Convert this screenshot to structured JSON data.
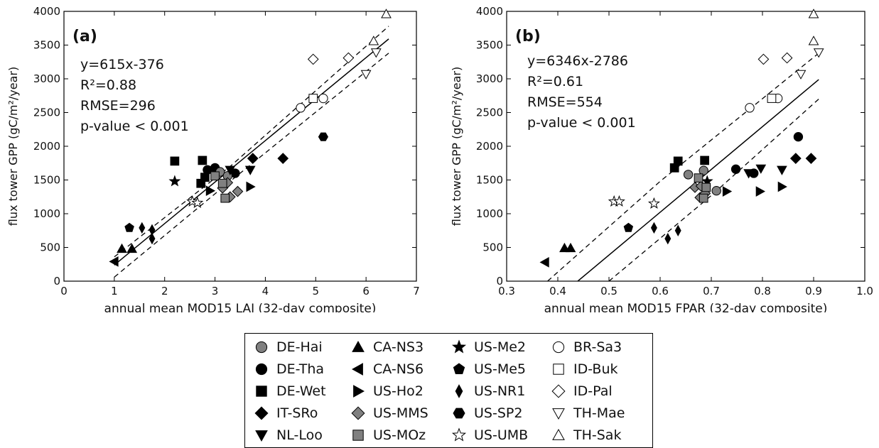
{
  "chart_data": [
    {
      "type": "scatter",
      "panel_label": "(a)",
      "xlabel": "annual mean MOD15 LAI (32-day composite)",
      "ylabel": "flux tower GPP (gC/m²/year)",
      "xlim": [
        0,
        7
      ],
      "ylim": [
        0,
        4000
      ],
      "xticks": [
        0,
        1,
        2,
        3,
        4,
        5,
        6,
        7
      ],
      "yticks": [
        0,
        500,
        1000,
        1500,
        2000,
        2500,
        3000,
        3500,
        4000
      ],
      "annotations": [
        "y=615x-376",
        "R²=0.88",
        "RMSE=296",
        "p-value < 0.001"
      ],
      "fit": {
        "slope": 615,
        "intercept": -376,
        "x_range": [
          1.0,
          6.45
        ]
      },
      "conf_band_upper": [
        [
          1.0,
          360
        ],
        [
          3.3,
          1700
        ],
        [
          6.45,
          3780
        ]
      ],
      "conf_band_lower": [
        [
          1.0,
          60
        ],
        [
          3.3,
          1480
        ],
        [
          6.45,
          3380
        ]
      ],
      "points": [
        {
          "site": "CA-NS3",
          "x": 1.15,
          "y": 480
        },
        {
          "site": "CA-NS3",
          "x": 1.35,
          "y": 480
        },
        {
          "site": "CA-NS6",
          "x": 1.0,
          "y": 290
        },
        {
          "site": "US-Me5",
          "x": 1.3,
          "y": 790
        },
        {
          "site": "US-NR1",
          "x": 1.55,
          "y": 790
        },
        {
          "site": "US-NR1",
          "x": 1.75,
          "y": 630
        },
        {
          "site": "US-NR1",
          "x": 1.75,
          "y": 760
        },
        {
          "site": "DE-Wet",
          "x": 2.2,
          "y": 1780
        },
        {
          "site": "US-Me2",
          "x": 2.2,
          "y": 1480
        },
        {
          "site": "DE-Wet",
          "x": 2.75,
          "y": 1790
        },
        {
          "site": "DE-Wet",
          "x": 2.72,
          "y": 1450
        },
        {
          "site": "DE-Wet",
          "x": 2.8,
          "y": 1540
        },
        {
          "site": "DE-Tha",
          "x": 2.85,
          "y": 1650
        },
        {
          "site": "DE-Tha",
          "x": 3.0,
          "y": 1680
        },
        {
          "site": "DE-Tha",
          "x": 3.4,
          "y": 1600
        },
        {
          "site": "DE-Hai",
          "x": 3.1,
          "y": 1620
        },
        {
          "site": "DE-Hai",
          "x": 3.25,
          "y": 1560
        },
        {
          "site": "US-Ho2",
          "x": 2.9,
          "y": 1340
        },
        {
          "site": "US-Ho2",
          "x": 3.7,
          "y": 1400
        },
        {
          "site": "NL-Loo",
          "x": 3.3,
          "y": 1650
        },
        {
          "site": "NL-Loo",
          "x": 3.7,
          "y": 1650
        },
        {
          "site": "IT-SRo",
          "x": 3.75,
          "y": 1820
        },
        {
          "site": "IT-SRo",
          "x": 4.35,
          "y": 1820
        },
        {
          "site": "US-MMS",
          "x": 3.15,
          "y": 1380
        },
        {
          "site": "US-MMS",
          "x": 3.25,
          "y": 1460
        },
        {
          "site": "US-MMS",
          "x": 3.3,
          "y": 1250
        },
        {
          "site": "US-MMS",
          "x": 3.45,
          "y": 1330
        },
        {
          "site": "US-MOz",
          "x": 3.0,
          "y": 1560
        },
        {
          "site": "US-MOz",
          "x": 3.15,
          "y": 1450
        },
        {
          "site": "US-MOz",
          "x": 3.2,
          "y": 1230
        },
        {
          "site": "US-UMB",
          "x": 2.55,
          "y": 1180
        },
        {
          "site": "US-UMB",
          "x": 2.65,
          "y": 1160
        },
        {
          "site": "US-SP2",
          "x": 5.15,
          "y": 2140
        },
        {
          "site": "BR-Sa3",
          "x": 4.7,
          "y": 2570
        },
        {
          "site": "BR-Sa3",
          "x": 5.15,
          "y": 2710
        },
        {
          "site": "ID-Buk",
          "x": 4.95,
          "y": 2710
        },
        {
          "site": "ID-Pal",
          "x": 4.95,
          "y": 3290
        },
        {
          "site": "ID-Pal",
          "x": 5.65,
          "y": 3310
        },
        {
          "site": "TH-Mae",
          "x": 6.0,
          "y": 3070
        },
        {
          "site": "TH-Mae",
          "x": 6.2,
          "y": 3390
        },
        {
          "site": "TH-Sak",
          "x": 6.15,
          "y": 3560
        },
        {
          "site": "TH-Sak",
          "x": 6.4,
          "y": 3960
        }
      ]
    },
    {
      "type": "scatter",
      "panel_label": "(b)",
      "xlabel": "annual mean MOD15 FPAR (32-day composite)",
      "ylabel": "flux tower GPP (gC/m²/year)",
      "xlim": [
        0.3,
        1.0
      ],
      "ylim": [
        0,
        4000
      ],
      "xticks": [
        0.3,
        0.4,
        0.5,
        0.6,
        0.7,
        0.8,
        0.9,
        1.0
      ],
      "yticks": [
        0,
        500,
        1000,
        1500,
        2000,
        2500,
        3000,
        3500,
        4000
      ],
      "annotations": [
        "y=6346x-2786",
        "R²=0.61",
        "RMSE=554",
        "p-value < 0.001"
      ],
      "fit": {
        "slope": 6346,
        "intercept": -2786,
        "x_range": [
          0.439,
          0.91
        ]
      },
      "conf_band_upper": [
        [
          0.38,
          0
        ],
        [
          0.6,
          1480
        ],
        [
          0.91,
          3380
        ]
      ],
      "conf_band_lower": [
        [
          0.5,
          0
        ],
        [
          0.7,
          1270
        ],
        [
          0.91,
          2700
        ]
      ],
      "points": [
        {
          "site": "CA-NS6",
          "x": 0.375,
          "y": 280
        },
        {
          "site": "CA-NS3",
          "x": 0.413,
          "y": 490
        },
        {
          "site": "CA-NS3",
          "x": 0.425,
          "y": 490
        },
        {
          "site": "US-UMB",
          "x": 0.51,
          "y": 1180
        },
        {
          "site": "US-UMB",
          "x": 0.52,
          "y": 1180
        },
        {
          "site": "US-UMB",
          "x": 0.588,
          "y": 1150
        },
        {
          "site": "US-Me5",
          "x": 0.538,
          "y": 790
        },
        {
          "site": "US-NR1",
          "x": 0.588,
          "y": 790
        },
        {
          "site": "US-NR1",
          "x": 0.615,
          "y": 630
        },
        {
          "site": "US-NR1",
          "x": 0.635,
          "y": 750
        },
        {
          "site": "DE-Wet",
          "x": 0.628,
          "y": 1680
        },
        {
          "site": "DE-Wet",
          "x": 0.635,
          "y": 1780
        },
        {
          "site": "DE-Wet",
          "x": 0.687,
          "y": 1790
        },
        {
          "site": "US-Me2",
          "x": 0.692,
          "y": 1480
        },
        {
          "site": "DE-Hai",
          "x": 0.655,
          "y": 1580
        },
        {
          "site": "DE-Hai",
          "x": 0.685,
          "y": 1640
        },
        {
          "site": "DE-Hai",
          "x": 0.71,
          "y": 1340
        },
        {
          "site": "DE-Tha",
          "x": 0.748,
          "y": 1660
        },
        {
          "site": "DE-Tha",
          "x": 0.783,
          "y": 1600
        },
        {
          "site": "DE-Tha",
          "x": 0.87,
          "y": 2140
        },
        {
          "site": "US-Ho2",
          "x": 0.73,
          "y": 1330
        },
        {
          "site": "US-Ho2",
          "x": 0.795,
          "y": 1330
        },
        {
          "site": "US-Ho2",
          "x": 0.838,
          "y": 1400
        },
        {
          "site": "NL-Loo",
          "x": 0.773,
          "y": 1600
        },
        {
          "site": "NL-Loo",
          "x": 0.797,
          "y": 1670
        },
        {
          "site": "NL-Loo",
          "x": 0.838,
          "y": 1650
        },
        {
          "site": "IT-SRo",
          "x": 0.865,
          "y": 1820
        },
        {
          "site": "IT-SRo",
          "x": 0.895,
          "y": 1820
        },
        {
          "site": "US-MMS",
          "x": 0.668,
          "y": 1390
        },
        {
          "site": "US-MMS",
          "x": 0.68,
          "y": 1410
        },
        {
          "site": "US-MMS",
          "x": 0.678,
          "y": 1240
        },
        {
          "site": "US-MMS",
          "x": 0.688,
          "y": 1300
        },
        {
          "site": "US-MOz",
          "x": 0.675,
          "y": 1530
        },
        {
          "site": "US-MOz",
          "x": 0.685,
          "y": 1230
        },
        {
          "site": "US-MOz",
          "x": 0.69,
          "y": 1390
        },
        {
          "site": "BR-Sa3",
          "x": 0.775,
          "y": 2570
        },
        {
          "site": "BR-Sa3",
          "x": 0.83,
          "y": 2710
        },
        {
          "site": "ID-Buk",
          "x": 0.818,
          "y": 2710
        },
        {
          "site": "ID-Pal",
          "x": 0.802,
          "y": 3290
        },
        {
          "site": "ID-Pal",
          "x": 0.848,
          "y": 3310
        },
        {
          "site": "TH-Mae",
          "x": 0.875,
          "y": 3070
        },
        {
          "site": "TH-Mae",
          "x": 0.91,
          "y": 3390
        },
        {
          "site": "TH-Sak",
          "x": 0.9,
          "y": 3560
        },
        {
          "site": "TH-Sak",
          "x": 0.9,
          "y": 3960
        }
      ]
    }
  ],
  "legend": {
    "items": [
      {
        "site": "DE-Hai",
        "marker": "circle",
        "fill": "#808080"
      },
      {
        "site": "DE-Tha",
        "marker": "circle",
        "fill": "#000000"
      },
      {
        "site": "DE-Wet",
        "marker": "square",
        "fill": "#000000"
      },
      {
        "site": "IT-SRo",
        "marker": "diamond",
        "fill": "#000000"
      },
      {
        "site": "NL-Loo",
        "marker": "triangle-down",
        "fill": "#000000"
      },
      {
        "site": "CA-NS3",
        "marker": "triangle-up",
        "fill": "#000000"
      },
      {
        "site": "CA-NS6",
        "marker": "triangle-left",
        "fill": "#000000"
      },
      {
        "site": "US-Ho2",
        "marker": "triangle-right",
        "fill": "#000000"
      },
      {
        "site": "US-MMS",
        "marker": "diamond",
        "fill": "#808080"
      },
      {
        "site": "US-MOz",
        "marker": "square",
        "fill": "#808080"
      },
      {
        "site": "US-Me2",
        "marker": "star",
        "fill": "#000000"
      },
      {
        "site": "US-Me5",
        "marker": "pentagon",
        "fill": "#000000"
      },
      {
        "site": "US-NR1",
        "marker": "thin-diamond",
        "fill": "#000000"
      },
      {
        "site": "US-SP2",
        "marker": "hexagon",
        "fill": "#000000"
      },
      {
        "site": "US-UMB",
        "marker": "star",
        "fill": "#ffffff"
      },
      {
        "site": "BR-Sa3",
        "marker": "circle",
        "fill": "#ffffff"
      },
      {
        "site": "ID-Buk",
        "marker": "square",
        "fill": "#ffffff"
      },
      {
        "site": "ID-Pal",
        "marker": "diamond",
        "fill": "#ffffff"
      },
      {
        "site": "TH-Mae",
        "marker": "triangle-down",
        "fill": "#ffffff"
      },
      {
        "site": "TH-Sak",
        "marker": "triangle-up",
        "fill": "#ffffff"
      }
    ]
  }
}
